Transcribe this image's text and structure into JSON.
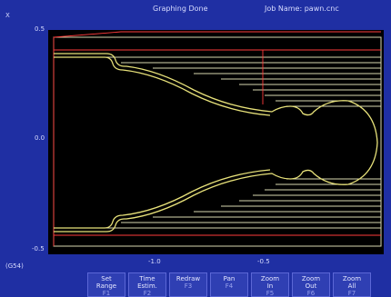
{
  "header": {
    "status": "Graphing Done",
    "job": "Job Name: pawn.cnc",
    "axis_letter": "X"
  },
  "y_ticks": [
    "0.5",
    "0.0",
    "-0.5"
  ],
  "x_ticks": [
    "-1.0",
    "-0.5"
  ],
  "work_offset": "(G54)",
  "fkeys": [
    {
      "line1": "Set",
      "line2": "Range",
      "fn": "F1"
    },
    {
      "line1": "Time",
      "line2": "Estim.",
      "fn": "F2"
    },
    {
      "line1": "Redraw",
      "line2": "",
      "fn": "F3"
    },
    {
      "line1": "Pan",
      "line2": "",
      "fn": "F4"
    },
    {
      "line1": "Zoom",
      "line2": "In",
      "fn": "F5"
    },
    {
      "line1": "Zoom",
      "line2": "Out",
      "fn": "F6"
    },
    {
      "line1": "Zoom",
      "line2": "All",
      "fn": "F7"
    }
  ],
  "colors": {
    "background": "#1f2fa3",
    "plot_background": "#000000",
    "part_outline": "#e8e27a",
    "toolpath": "#ff3b3b",
    "cut_lines": "#d9d9b0"
  }
}
